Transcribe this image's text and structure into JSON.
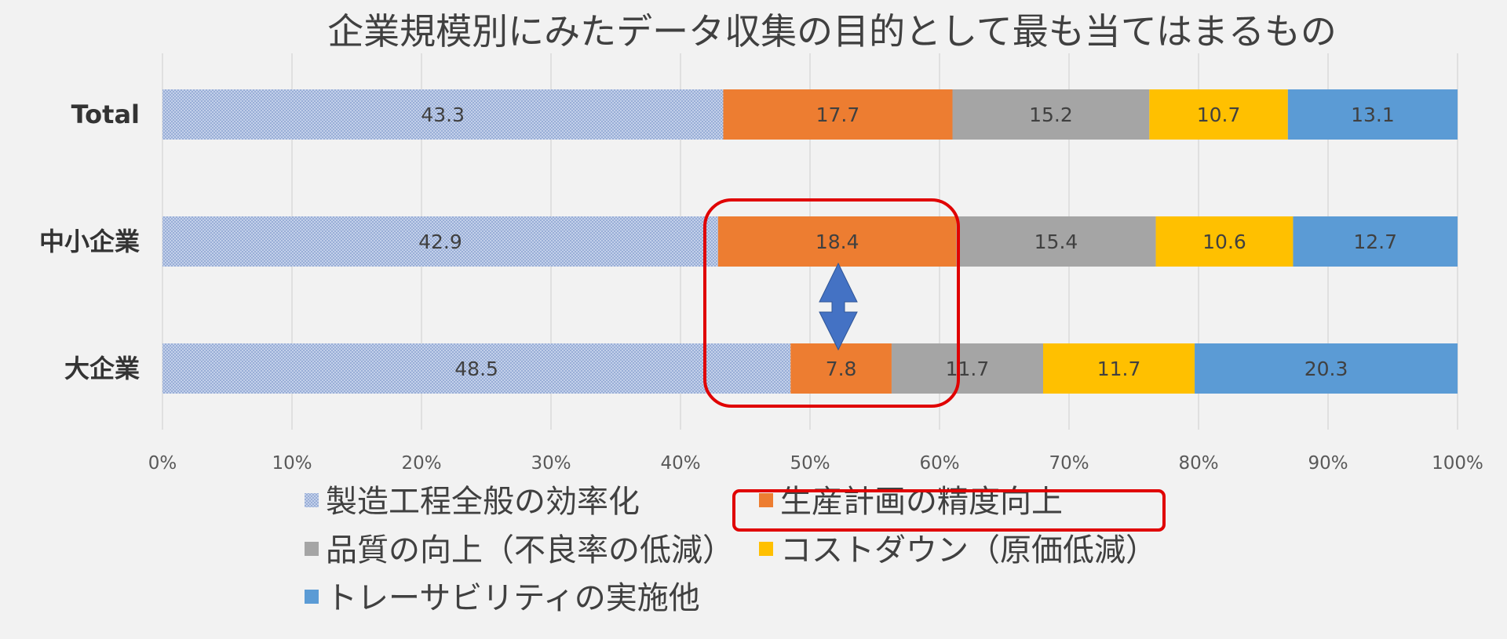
{
  "chart_data": {
    "type": "bar",
    "orientation": "horizontal",
    "stacked": "percent",
    "title": "企業規模別にみたデータ収集の目的として最も当てはまるもの",
    "categories": [
      "Total",
      "中小企業",
      "大企業"
    ],
    "series": [
      {
        "name": "製造工程全般の効率化",
        "values": [
          43.3,
          42.9,
          48.5
        ],
        "color": "#8ea9db",
        "pattern": "dotted"
      },
      {
        "name": "生産計画の精度向上",
        "values": [
          17.7,
          18.4,
          7.8
        ],
        "color": "#ed7d31"
      },
      {
        "name": "品質の向上（不良率の低減）",
        "values": [
          15.2,
          15.4,
          11.7
        ],
        "color": "#a5a5a5"
      },
      {
        "name": "コストダウン（原価低減）",
        "values": [
          10.7,
          10.6,
          11.7
        ],
        "color": "#ffc000"
      },
      {
        "name": "トレーサビリティの実施他",
        "values": [
          13.1,
          12.7,
          20.3
        ],
        "color": "#5b9bd5"
      }
    ],
    "xlim": [
      0,
      100
    ],
    "x_ticks": [
      "0%",
      "10%",
      "20%",
      "30%",
      "40%",
      "50%",
      "60%",
      "70%",
      "80%",
      "90%",
      "100%"
    ],
    "grid": true,
    "legend_position": "bottom",
    "annotations": {
      "highlight_box": "生産計画の精度向上 (中小企業 vs 大企業)",
      "arrow": "double-headed vertical between 中小企業 and 大企業",
      "highlight_color": "#e00000",
      "arrow_color": "#4472c4"
    }
  }
}
